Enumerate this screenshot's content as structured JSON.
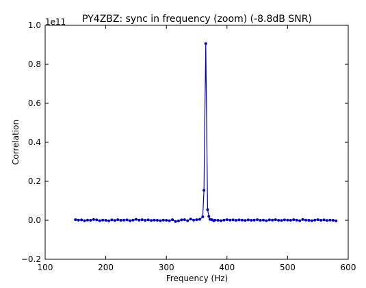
{
  "chart_data": {
    "type": "line",
    "title": "PY4ZBZ: sync in frequency (zoom) (-8.8dB SNR)",
    "xlabel": "Frequency (Hz)",
    "ylabel": "Correlation",
    "y_scale_factor_label": "1e11",
    "xlim": [
      100,
      600
    ],
    "ylim": [
      -0.2,
      1.0
    ],
    "x_ticks": [
      100,
      200,
      300,
      400,
      500,
      600
    ],
    "x_tick_labels": [
      "100",
      "200",
      "300",
      "400",
      "500",
      "600"
    ],
    "y_ticks": [
      -0.2,
      0.0,
      0.2,
      0.4,
      0.6,
      0.8,
      1.0
    ],
    "y_tick_labels": [
      "−0.2",
      "0.0",
      "0.2",
      "0.4",
      "0.6",
      "0.8",
      "1.0"
    ],
    "grid": false,
    "line_color": "#0000cc",
    "marker": "dot",
    "series": [
      {
        "x": [
          150,
          155,
          160,
          165,
          170,
          175,
          180,
          185,
          190,
          195,
          200,
          205,
          210,
          215,
          220,
          225,
          230,
          235,
          240,
          245,
          250,
          255,
          260,
          265,
          270,
          275,
          280,
          285,
          290,
          295,
          300,
          305,
          310,
          315,
          320,
          325,
          330,
          335,
          340,
          345,
          350,
          355,
          360,
          362,
          365,
          368,
          370,
          372,
          375,
          378,
          380,
          385,
          390,
          395,
          400,
          405,
          410,
          415,
          420,
          425,
          430,
          435,
          440,
          445,
          450,
          455,
          460,
          465,
          470,
          475,
          480,
          485,
          490,
          495,
          500,
          505,
          510,
          515,
          520,
          525,
          530,
          535,
          540,
          545,
          550,
          555,
          560,
          565,
          570,
          575,
          580
        ],
        "y": [
          0.003,
          0.001,
          0.002,
          -0.002,
          0.001,
          0.0,
          0.004,
          0.002,
          -0.002,
          0.001,
          0.0,
          -0.003,
          0.002,
          -0.001,
          0.003,
          0.0,
          0.001,
          0.002,
          -0.002,
          0.001,
          0.005,
          0.001,
          0.003,
          0.0,
          0.002,
          -0.001,
          0.001,
          0.0,
          -0.002,
          0.001,
          0.0,
          -0.002,
          0.003,
          -0.006,
          -0.003,
          0.002,
          0.003,
          -0.002,
          0.006,
          0.001,
          0.003,
          0.005,
          0.018,
          0.154,
          0.906,
          0.055,
          0.02,
          0.005,
          0.003,
          -0.002,
          0.001,
          0.0,
          -0.002,
          0.001,
          0.003,
          0.001,
          0.002,
          0.0,
          0.002,
          0.001,
          -0.001,
          0.002,
          0.0,
          0.001,
          0.003,
          0.0,
          0.001,
          -0.002,
          0.002,
          0.001,
          0.003,
          0.0,
          -0.001,
          0.002,
          0.001,
          0.0,
          0.003,
          0.001,
          -0.002,
          0.004,
          0.001,
          0.0,
          -0.002,
          0.001,
          0.003,
          0.0,
          0.002,
          -0.001,
          0.001,
          0.0,
          -0.003
        ]
      }
    ]
  }
}
